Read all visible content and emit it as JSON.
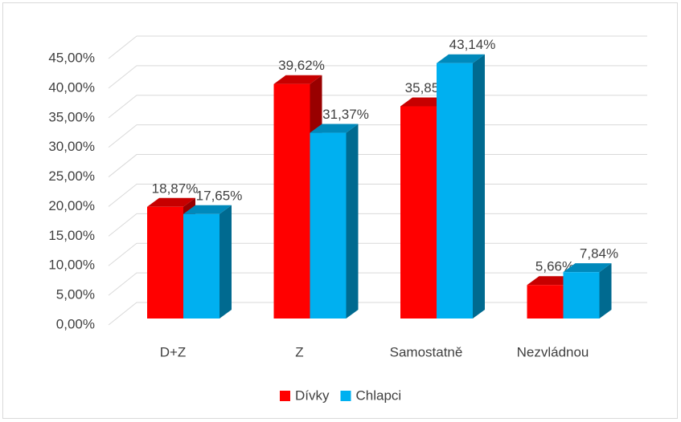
{
  "chart_data": {
    "type": "bar3d",
    "categories": [
      "D+Z",
      "Z",
      "Samostatně",
      "Nezvládnou"
    ],
    "series": [
      {
        "name": "Dívky",
        "color": "#ff0000",
        "values": [
          18.87,
          39.62,
          35.85,
          5.66
        ],
        "value_labels": [
          "18,87%",
          "39,62%",
          "35,85%",
          "5,66%"
        ]
      },
      {
        "name": "Chlapci",
        "color": "#00b0f0",
        "values": [
          17.65,
          31.37,
          43.14,
          7.84
        ],
        "value_labels": [
          "17,65%",
          "31,37%",
          "43,14%",
          "7,84%"
        ]
      }
    ],
    "ylim": [
      0,
      45
    ],
    "yticks": [
      {
        "value": 0,
        "label": "0,00%"
      },
      {
        "value": 5,
        "label": "5,00%"
      },
      {
        "value": 10,
        "label": "10,00%"
      },
      {
        "value": 15,
        "label": "15,00%"
      },
      {
        "value": 20,
        "label": "20,00%"
      },
      {
        "value": 25,
        "label": "25,00%"
      },
      {
        "value": 30,
        "label": "30,00%"
      },
      {
        "value": 35,
        "label": "35,00%"
      },
      {
        "value": 40,
        "label": "40,00%"
      },
      {
        "value": 45,
        "label": "45,00%"
      }
    ],
    "grid": true,
    "legend": "bottom"
  }
}
